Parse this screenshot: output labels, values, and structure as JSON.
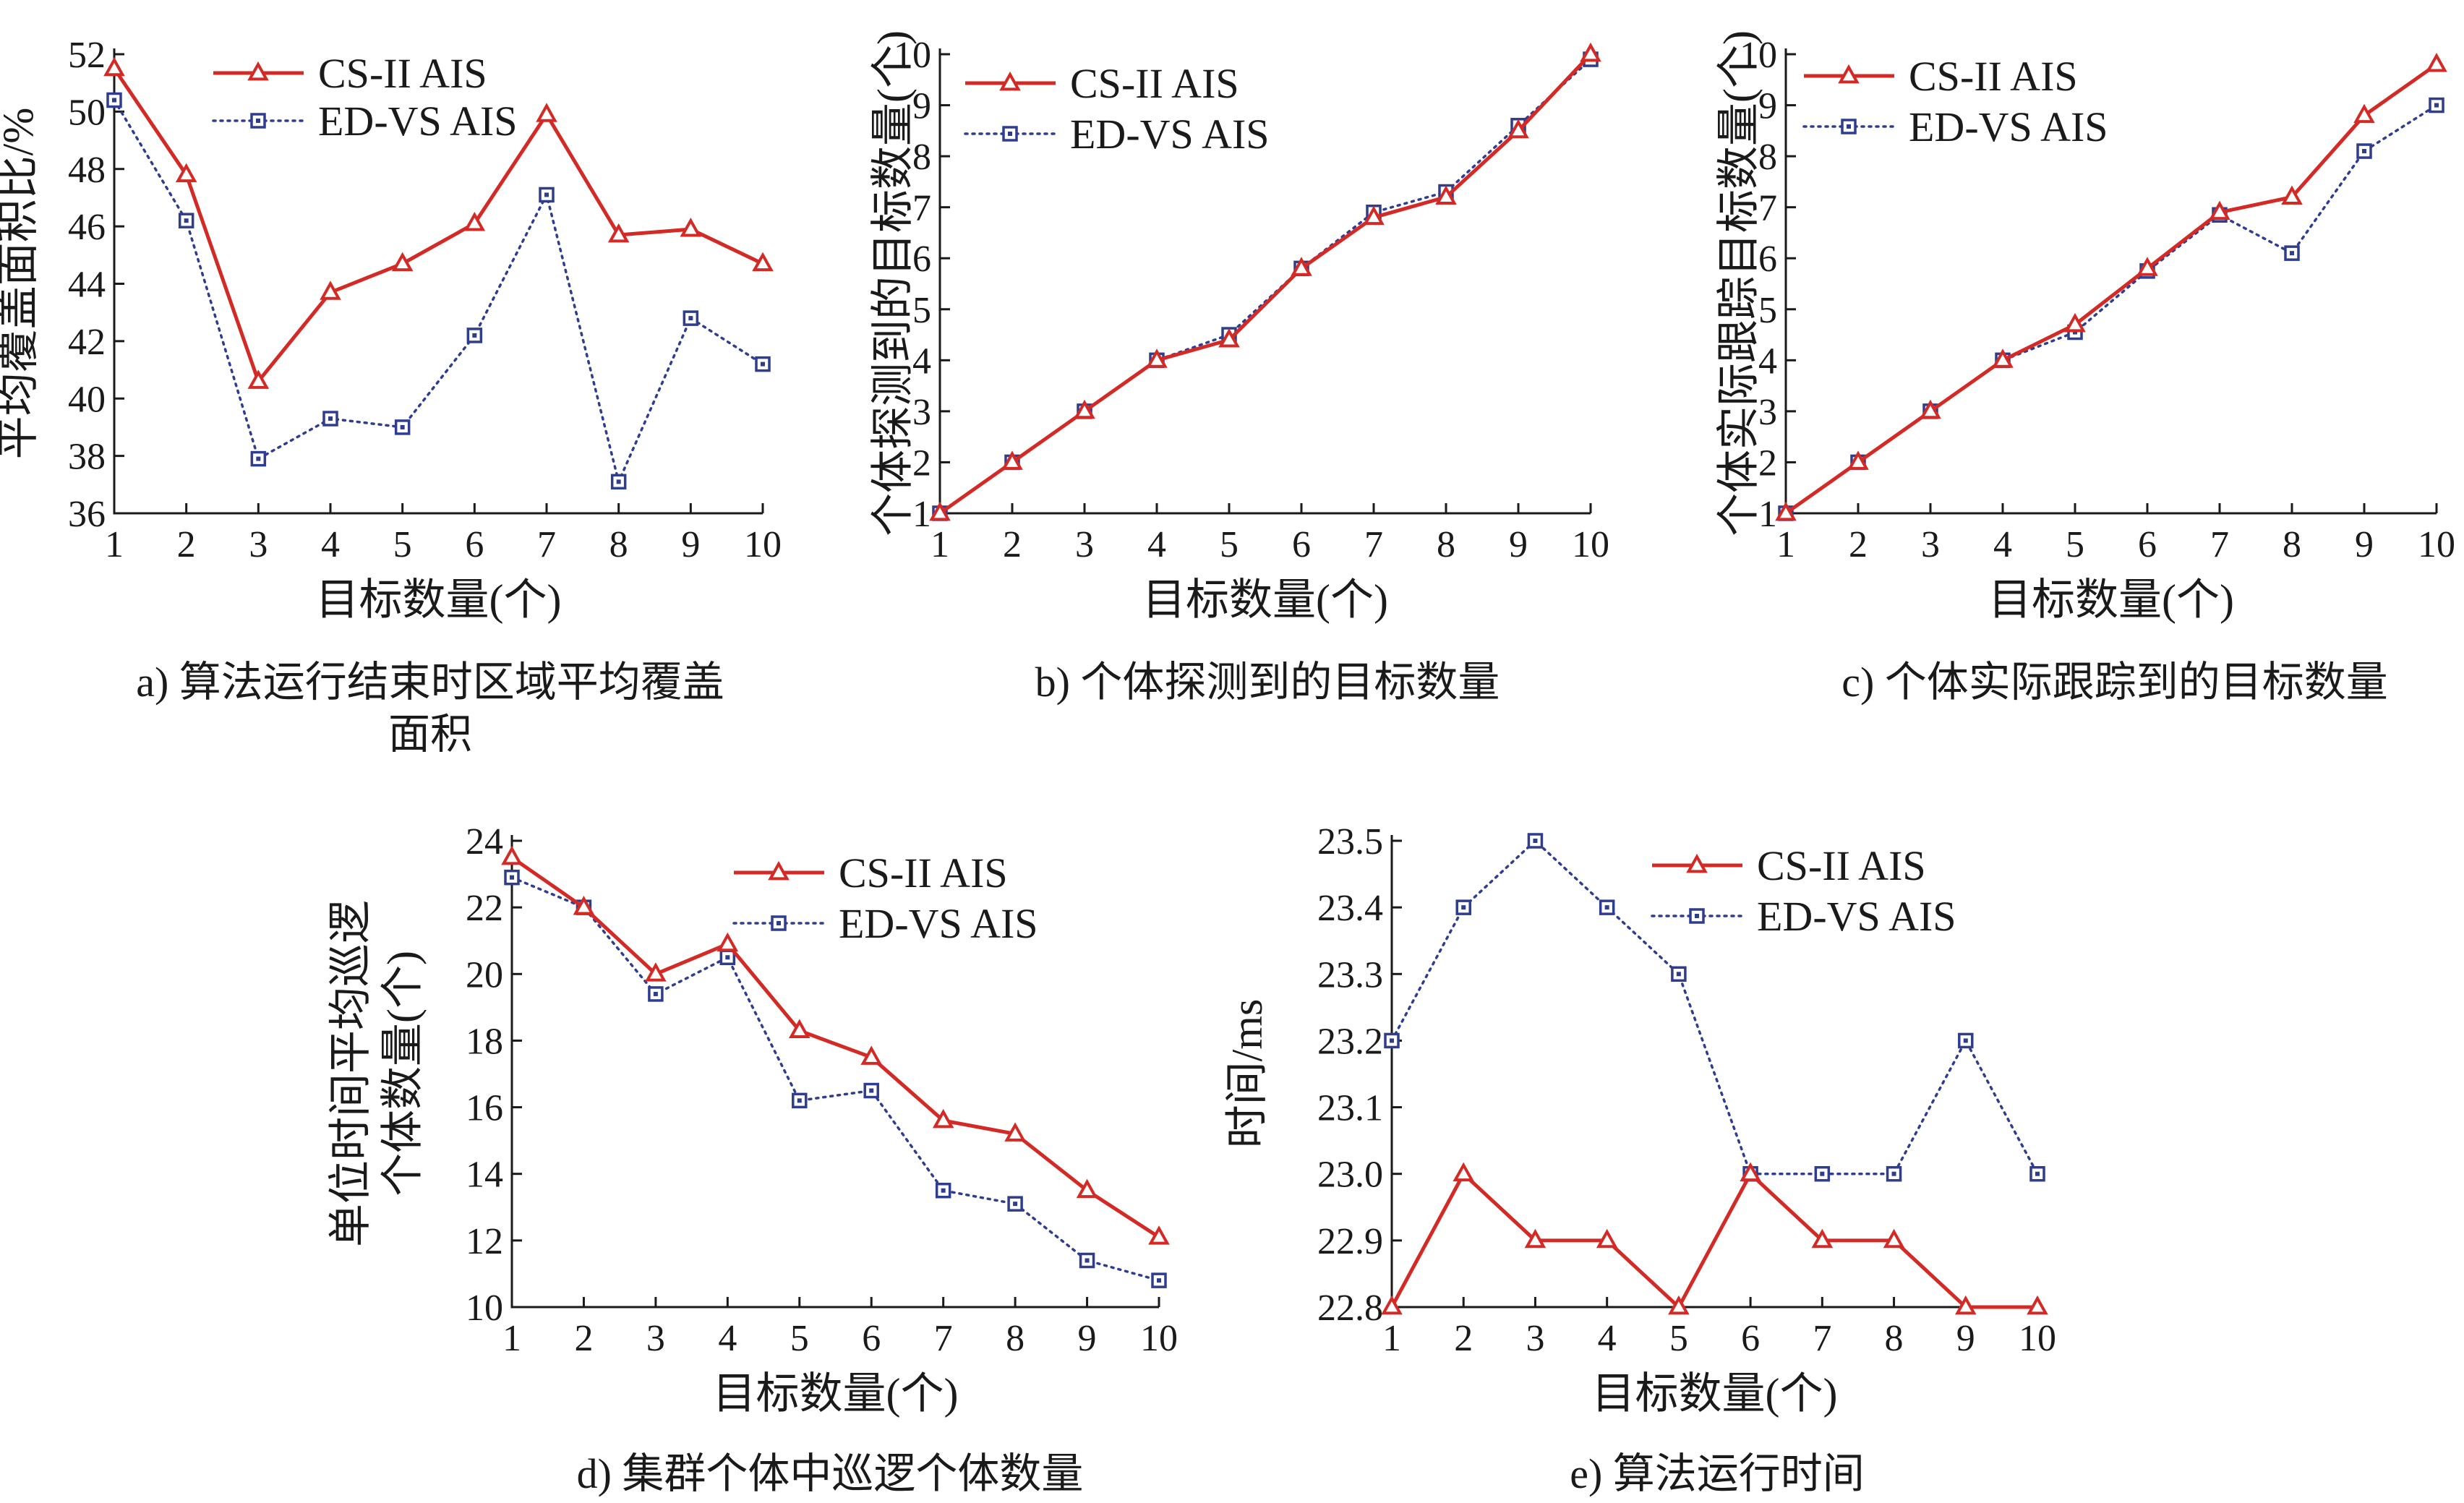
{
  "figure": {
    "colors": {
      "cs": "#d42a26",
      "ed": "#2f3d8f",
      "axis": "#1a1a1a"
    },
    "legend": {
      "cs": "CS-II AIS",
      "ed": "ED-VS AIS"
    }
  },
  "chart_data": [
    {
      "id": "a",
      "type": "line",
      "caption": "a) 算法运行结束时区域平均覆盖面积",
      "ylabel": "平均覆盖面积比/%",
      "xlabel": "目标数量(个)",
      "x": [
        1,
        2,
        3,
        4,
        5,
        6,
        7,
        8,
        9,
        10
      ],
      "xlim": [
        1,
        10
      ],
      "ylim": [
        36,
        52
      ],
      "yticks": [
        36,
        38,
        40,
        42,
        44,
        46,
        48,
        50,
        52
      ],
      "ytick_labels": [
        "36",
        "38",
        "40",
        "42",
        "44",
        "46",
        "48",
        "50",
        "52"
      ],
      "legend_position": "top-left",
      "series": [
        {
          "name": "CS-II AIS",
          "values": [
            51.5,
            47.8,
            40.6,
            43.7,
            44.7,
            46.1,
            49.9,
            45.7,
            45.9,
            44.7
          ]
        },
        {
          "name": "ED-VS AIS",
          "values": [
            50.4,
            46.2,
            37.9,
            39.3,
            39.0,
            42.2,
            47.1,
            37.1,
            42.8,
            41.2
          ]
        }
      ]
    },
    {
      "id": "b",
      "type": "line",
      "caption": "b) 个体探测到的目标数量",
      "ylabel": "个体探测到的目标数量(个)",
      "xlabel": "目标数量(个)",
      "x": [
        1,
        2,
        3,
        4,
        5,
        6,
        7,
        8,
        9,
        10
      ],
      "xlim": [
        1,
        10
      ],
      "ylim": [
        1,
        10
      ],
      "yticks": [
        1,
        2,
        3,
        4,
        5,
        6,
        7,
        8,
        9,
        10
      ],
      "ytick_labels": [
        "1",
        "2",
        "3",
        "4",
        "5",
        "6",
        "7",
        "8",
        "9",
        "10"
      ],
      "legend_position": "top-left",
      "series": [
        {
          "name": "CS-II AIS",
          "values": [
            1,
            2,
            3,
            4,
            4.4,
            5.8,
            6.8,
            7.2,
            8.5,
            10
          ]
        },
        {
          "name": "ED-VS AIS",
          "values": [
            1,
            2,
            3,
            4,
            4.5,
            5.8,
            6.9,
            7.3,
            8.6,
            9.9
          ]
        }
      ]
    },
    {
      "id": "c",
      "type": "line",
      "caption": "c) 个体实际跟踪到的目标数量",
      "ylabel": "个体实际跟踪目标数量(个)",
      "xlabel": "目标数量(个)",
      "x": [
        1,
        2,
        3,
        4,
        5,
        6,
        7,
        8,
        9,
        10
      ],
      "xlim": [
        1,
        10
      ],
      "ylim": [
        1,
        10
      ],
      "yticks": [
        1,
        2,
        3,
        4,
        5,
        6,
        7,
        8,
        9,
        10
      ],
      "ytick_labels": [
        "1",
        "2",
        "3",
        "4",
        "5",
        "6",
        "7",
        "8",
        "9",
        "10"
      ],
      "legend_position": "top-left",
      "series": [
        {
          "name": "CS-II AIS",
          "values": [
            1,
            2,
            3,
            4,
            4.7,
            5.8,
            6.9,
            7.2,
            8.8,
            9.8
          ]
        },
        {
          "name": "ED-VS AIS",
          "values": [
            1,
            2,
            3,
            4,
            4.55,
            5.75,
            6.85,
            6.1,
            8.1,
            9.0
          ]
        }
      ]
    },
    {
      "id": "d",
      "type": "line",
      "caption": "d) 集群个体中巡逻个体数量",
      "ylabel": "单位时间平均巡逻个体数量(个)",
      "ylabel_lines": [
        "单位时间平均巡逻",
        "个体数量(个)"
      ],
      "xlabel": "目标数量(个)",
      "x": [
        1,
        2,
        3,
        4,
        5,
        6,
        7,
        8,
        9,
        10
      ],
      "xlim": [
        1,
        10
      ],
      "ylim": [
        10,
        24
      ],
      "yticks": [
        10,
        12,
        14,
        16,
        18,
        20,
        22,
        24
      ],
      "ytick_labels": [
        "10",
        "12",
        "14",
        "16",
        "18",
        "20",
        "22",
        "24"
      ],
      "legend_position": "top-right",
      "series": [
        {
          "name": "CS-II AIS",
          "values": [
            23.5,
            22.0,
            20.0,
            20.9,
            18.3,
            17.5,
            15.6,
            15.2,
            13.5,
            12.1
          ]
        },
        {
          "name": "ED-VS AIS",
          "values": [
            22.9,
            22.0,
            19.4,
            20.5,
            16.2,
            16.5,
            13.5,
            13.1,
            11.4,
            10.8
          ]
        }
      ]
    },
    {
      "id": "e",
      "type": "line",
      "caption": "e) 算法运行时间",
      "ylabel": "时间/ms",
      "xlabel": "目标数量(个)",
      "x": [
        1,
        2,
        3,
        4,
        5,
        6,
        7,
        8,
        9,
        10
      ],
      "xlim": [
        1,
        10
      ],
      "ylim": [
        22.8,
        23.5
      ],
      "yticks": [
        22.8,
        22.9,
        23.0,
        23.1,
        23.2,
        23.3,
        23.4,
        23.5
      ],
      "ytick_labels": [
        "22.8",
        "22.9",
        "23.0",
        "23.1",
        "23.2",
        "23.3",
        "23.4",
        "23.5"
      ],
      "legend_position": "top-right",
      "series": [
        {
          "name": "CS-II AIS",
          "values": [
            22.8,
            23.0,
            22.9,
            22.9,
            22.8,
            23.0,
            22.9,
            22.9,
            22.8,
            22.8
          ]
        },
        {
          "name": "ED-VS AIS",
          "values": [
            23.2,
            23.4,
            23.5,
            23.4,
            23.3,
            23.0,
            23.0,
            23.0,
            23.2,
            23.0
          ]
        }
      ]
    }
  ]
}
